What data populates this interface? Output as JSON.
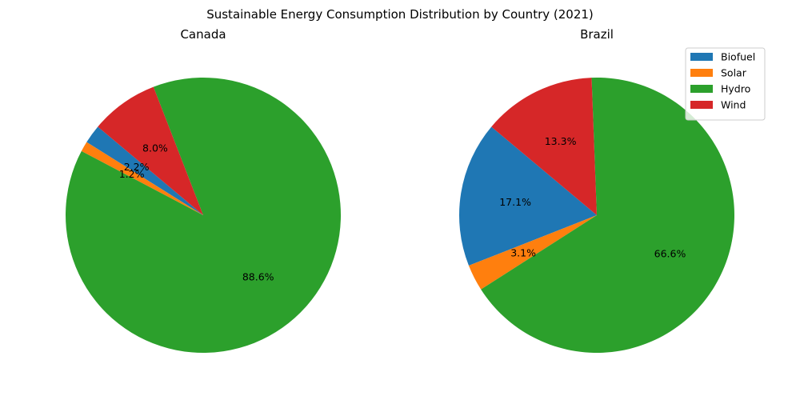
{
  "chart_data": {
    "type": "pie",
    "title": "Sustainable Energy Consumption Distribution by Country (2021)",
    "legend": {
      "placement": "top-right",
      "entries": [
        "Biofuel",
        "Solar",
        "Hydro",
        "Wind"
      ]
    },
    "categories": [
      "Biofuel",
      "Solar",
      "Hydro",
      "Wind"
    ],
    "colors": {
      "Biofuel": "#1f77b4",
      "Solar": "#ff7f0e",
      "Hydro": "#2ca02c",
      "Wind": "#d62728"
    },
    "pies": [
      {
        "title": "Canada",
        "slices": [
          {
            "label": "Biofuel",
            "value": 2.2,
            "pct_label": "2.2%"
          },
          {
            "label": "Solar",
            "value": 1.2,
            "pct_label": "1.2%"
          },
          {
            "label": "Hydro",
            "value": 88.6,
            "pct_label": "88.6%"
          },
          {
            "label": "Wind",
            "value": 8.0,
            "pct_label": "8.0%"
          }
        ]
      },
      {
        "title": "Brazil",
        "slices": [
          {
            "label": "Biofuel",
            "value": 17.1,
            "pct_label": "17.1%"
          },
          {
            "label": "Solar",
            "value": 3.1,
            "pct_label": "3.1%"
          },
          {
            "label": "Hydro",
            "value": 66.6,
            "pct_label": "66.6%"
          },
          {
            "label": "Wind",
            "value": 13.3,
            "pct_label": "13.3%"
          }
        ]
      }
    ]
  }
}
